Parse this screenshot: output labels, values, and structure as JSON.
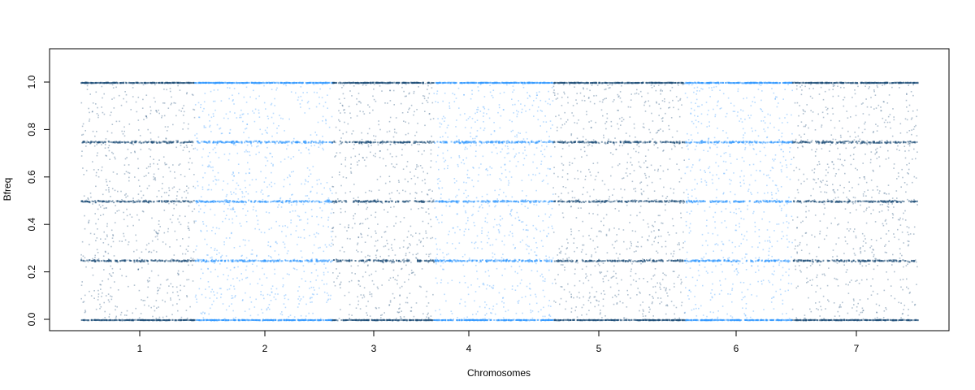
{
  "chart_data": {
    "type": "scatter",
    "title": "",
    "xlabel": "Chromosomes",
    "ylabel": "Bfreq",
    "xlim": [
      0.5,
      7.5
    ],
    "ylim": [
      -0.05,
      1.15
    ],
    "x_tick_labels": [
      "1",
      "2",
      "3",
      "4",
      "5",
      "6",
      "7"
    ],
    "y_ticks": [
      0.0,
      0.2,
      0.4,
      0.6,
      0.8,
      1.0
    ],
    "y_tick_labels": [
      "0.0",
      "0.2",
      "0.4",
      "0.6",
      "0.8",
      "1.0"
    ],
    "grid": false,
    "legend": "none",
    "bands": [
      0.0,
      0.25,
      0.5,
      0.75,
      1.0
    ],
    "chromosomes": [
      {
        "name": "1",
        "start": 0.5,
        "end": 1.45,
        "color": "#1f4e79"
      },
      {
        "name": "2",
        "start": 1.45,
        "end": 2.6,
        "color": "#3399ff"
      },
      {
        "name": "3",
        "start": 2.6,
        "end": 3.45,
        "color": "#1f4e79"
      },
      {
        "name": "4",
        "start": 3.45,
        "end": 4.45,
        "color": "#3399ff"
      },
      {
        "name": "5",
        "start": 4.45,
        "end": 5.55,
        "color": "#1f4e79"
      },
      {
        "name": "6",
        "start": 5.55,
        "end": 6.45,
        "color": "#3399ff"
      },
      {
        "name": "7",
        "start": 6.45,
        "end": 7.5,
        "color": "#1f4e79"
      }
    ],
    "colors": {
      "dark": "#1f4e79",
      "light": "#3399ff"
    }
  }
}
